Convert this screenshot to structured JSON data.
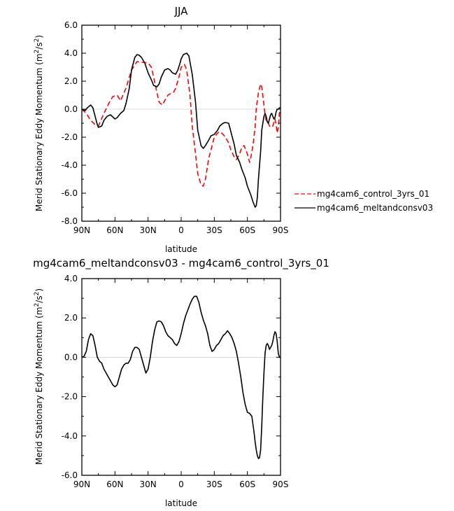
{
  "chart_data": [
    {
      "type": "line",
      "title": "JJA",
      "xlabel": "latitude",
      "ylabel_text": "Merid Stationary Eddy Momentum",
      "ylabel_unit_base": "m",
      "ylabel_unit_exp1": "2",
      "ylabel_unit_sep": "/s",
      "ylabel_unit_exp2": "2",
      "xlim": [
        90,
        -90
      ],
      "ylim": [
        -8,
        6
      ],
      "xticks": [
        90,
        60,
        30,
        0,
        -30,
        -60,
        -90
      ],
      "xtick_labels": [
        "90N",
        "60N",
        "30N",
        "0",
        "30S",
        "60S",
        "90S"
      ],
      "yticks": [
        -8,
        -6,
        -4,
        -2,
        0,
        2,
        4,
        6
      ],
      "ytick_labels": [
        "-8.0",
        "-6.0",
        "-4.0",
        "-2.0",
        "0.0",
        "2.0",
        "4.0",
        "6.0"
      ],
      "legend_position": "outside-right",
      "series": [
        {
          "name": "mg4cam6_control_3yrs_01",
          "color": "#ff0000",
          "dash": "dashed",
          "x": [
            90,
            86,
            82,
            78,
            75,
            70,
            65,
            62,
            58,
            55,
            50,
            45,
            40,
            35,
            30,
            27,
            25,
            22,
            20,
            17,
            15,
            12,
            10,
            7,
            5,
            2,
            0,
            -3,
            -5,
            -8,
            -10,
            -13,
            -15,
            -18,
            -20,
            -22,
            -25,
            -28,
            -30,
            -33,
            -35,
            -38,
            -40,
            -43,
            -45,
            -48,
            -50,
            -53,
            -55,
            -57,
            -60,
            -62,
            -63,
            -65,
            -67,
            -68,
            -70,
            -72,
            -73,
            -75,
            -76,
            -77,
            -78,
            -79,
            -80,
            -82,
            -83,
            -85,
            -86,
            -87,
            -88,
            -89,
            -90
          ],
          "y": [
            0.0,
            -0.3,
            -0.8,
            -1.1,
            -1.2,
            -0.3,
            0.5,
            0.9,
            1.0,
            0.6,
            1.5,
            2.8,
            3.4,
            3.35,
            3.3,
            3.0,
            2.3,
            1.2,
            0.5,
            0.3,
            0.6,
            1.0,
            1.1,
            1.2,
            1.5,
            2.3,
            3.0,
            3.2,
            2.8,
            1.0,
            -1.2,
            -3.2,
            -4.6,
            -5.4,
            -5.5,
            -5.0,
            -3.5,
            -2.6,
            -2.0,
            -1.7,
            -1.6,
            -1.8,
            -2.0,
            -2.4,
            -2.9,
            -3.4,
            -3.6,
            -3.2,
            -2.7,
            -2.6,
            -3.2,
            -3.8,
            -3.5,
            -2.6,
            -1.3,
            0.0,
            1.2,
            1.8,
            1.6,
            0.3,
            -0.4,
            -0.8,
            -1.0,
            -1.0,
            -1.2,
            -1.3,
            -1.2,
            -0.7,
            -1.1,
            -1.7,
            -1.3,
            -0.3,
            0.0
          ]
        },
        {
          "name": "mg4cam6_meltandconsv03",
          "color": "#000000",
          "dash": "solid",
          "x": [
            90,
            87,
            85,
            82,
            80,
            78,
            76,
            75,
            72,
            70,
            67,
            64,
            60,
            58,
            55,
            52,
            50,
            47,
            45,
            42,
            40,
            38,
            36,
            33,
            30,
            27,
            25,
            22,
            20,
            18,
            15,
            12,
            10,
            8,
            5,
            3,
            1,
            0,
            -2,
            -5,
            -7,
            -10,
            -13,
            -15,
            -18,
            -20,
            -22,
            -25,
            -27,
            -30,
            -33,
            -35,
            -38,
            -40,
            -43,
            -45,
            -48,
            -50,
            -53,
            -55,
            -58,
            -60,
            -63,
            -65,
            -67,
            -68,
            -69,
            -70,
            -72,
            -73,
            -75,
            -76,
            -77,
            -78,
            -79,
            -80,
            -81,
            -82,
            -83,
            -84,
            -85,
            -86,
            -87,
            -88,
            -89,
            -90
          ],
          "y": [
            0.0,
            -0.1,
            0.1,
            0.3,
            0.1,
            -0.5,
            -1.1,
            -1.3,
            -1.2,
            -0.8,
            -0.5,
            -0.4,
            -0.7,
            -0.6,
            -0.3,
            -0.1,
            0.4,
            1.5,
            2.8,
            3.7,
            3.9,
            3.85,
            3.7,
            3.3,
            2.6,
            2.1,
            1.7,
            1.6,
            1.8,
            2.3,
            2.8,
            2.9,
            2.8,
            2.6,
            2.5,
            2.8,
            3.3,
            3.6,
            3.9,
            4.0,
            3.8,
            2.5,
            0.5,
            -1.5,
            -2.6,
            -2.8,
            -2.6,
            -2.2,
            -1.9,
            -1.8,
            -1.5,
            -1.2,
            -1.0,
            -0.95,
            -1.0,
            -1.6,
            -2.5,
            -3.3,
            -3.8,
            -4.3,
            -4.9,
            -5.5,
            -6.1,
            -6.6,
            -7.0,
            -6.9,
            -6.3,
            -5.0,
            -3.0,
            -1.5,
            -0.5,
            -0.3,
            -0.5,
            -0.9,
            -1.0,
            -0.7,
            -0.4,
            -0.3,
            -0.5,
            -0.7,
            -0.6,
            -0.2,
            0.0,
            0.0,
            0.1,
            0.1
          ]
        }
      ]
    },
    {
      "type": "line",
      "title": "mg4cam6_meltandconsv03 - mg4cam6_control_3yrs_01",
      "xlabel": "latitude",
      "ylabel_text": "Merid Stationary Eddy Momentum",
      "ylabel_unit_base": "m",
      "ylabel_unit_exp1": "2",
      "ylabel_unit_sep": "/s",
      "ylabel_unit_exp2": "2",
      "xlim": [
        90,
        -90
      ],
      "ylim": [
        -6,
        4
      ],
      "xticks": [
        90,
        60,
        30,
        0,
        -30,
        -60,
        -90
      ],
      "xtick_labels": [
        "90N",
        "60N",
        "30N",
        "0",
        "30S",
        "60S",
        "90S"
      ],
      "yticks": [
        -6,
        -4,
        -2,
        0,
        2,
        4
      ],
      "ytick_labels": [
        "-6.0",
        "-4.0",
        "-2.0",
        "0.0",
        "2.0",
        "4.0"
      ],
      "series": [
        {
          "color": "#000000",
          "dash": "solid",
          "x": [
            90,
            88,
            86,
            84,
            82,
            80,
            78,
            76,
            74,
            72,
            70,
            68,
            66,
            64,
            62,
            60,
            58,
            56,
            54,
            52,
            50,
            48,
            46,
            44,
            42,
            40,
            38,
            36,
            34,
            32,
            30,
            28,
            26,
            24,
            22,
            20,
            18,
            16,
            14,
            12,
            10,
            8,
            6,
            4,
            2,
            0,
            -2,
            -4,
            -6,
            -8,
            -10,
            -12,
            -14,
            -16,
            -18,
            -20,
            -22,
            -24,
            -26,
            -28,
            -30,
            -32,
            -34,
            -36,
            -38,
            -40,
            -42,
            -44,
            -46,
            -48,
            -50,
            -52,
            -54,
            -56,
            -58,
            -60,
            -62,
            -64,
            -65,
            -66,
            -67,
            -68,
            -69,
            -70,
            -71,
            -72,
            -73,
            -74,
            -75,
            -76,
            -77,
            -78,
            -79,
            -80,
            -81,
            -82,
            -83,
            -84,
            -85,
            -86,
            -87,
            -88,
            -89,
            -90
          ],
          "y": [
            0.0,
            0.05,
            0.3,
            0.9,
            1.2,
            1.1,
            0.6,
            0.0,
            -0.2,
            -0.3,
            -0.6,
            -0.8,
            -1.0,
            -1.2,
            -1.4,
            -1.5,
            -1.4,
            -1.0,
            -0.6,
            -0.4,
            -0.3,
            -0.3,
            -0.1,
            0.3,
            0.5,
            0.5,
            0.4,
            0.0,
            -0.4,
            -0.8,
            -0.6,
            0.0,
            0.8,
            1.4,
            1.8,
            1.85,
            1.8,
            1.6,
            1.3,
            1.1,
            1.0,
            0.9,
            0.7,
            0.6,
            0.8,
            1.2,
            1.7,
            2.1,
            2.4,
            2.7,
            2.95,
            3.1,
            3.1,
            2.8,
            2.3,
            1.9,
            1.6,
            1.2,
            0.6,
            0.3,
            0.4,
            0.6,
            0.7,
            0.9,
            1.1,
            1.2,
            1.35,
            1.2,
            1.0,
            0.7,
            0.3,
            -0.3,
            -1.0,
            -1.8,
            -2.4,
            -2.8,
            -2.85,
            -3.0,
            -3.4,
            -3.8,
            -4.3,
            -4.7,
            -5.0,
            -5.15,
            -5.1,
            -4.7,
            -3.5,
            -2.0,
            -0.8,
            0.2,
            0.6,
            0.7,
            0.6,
            0.4,
            0.5,
            0.6,
            0.8,
            1.1,
            1.3,
            1.2,
            0.8,
            0.2,
            0.0,
            0.0
          ]
        }
      ]
    }
  ]
}
